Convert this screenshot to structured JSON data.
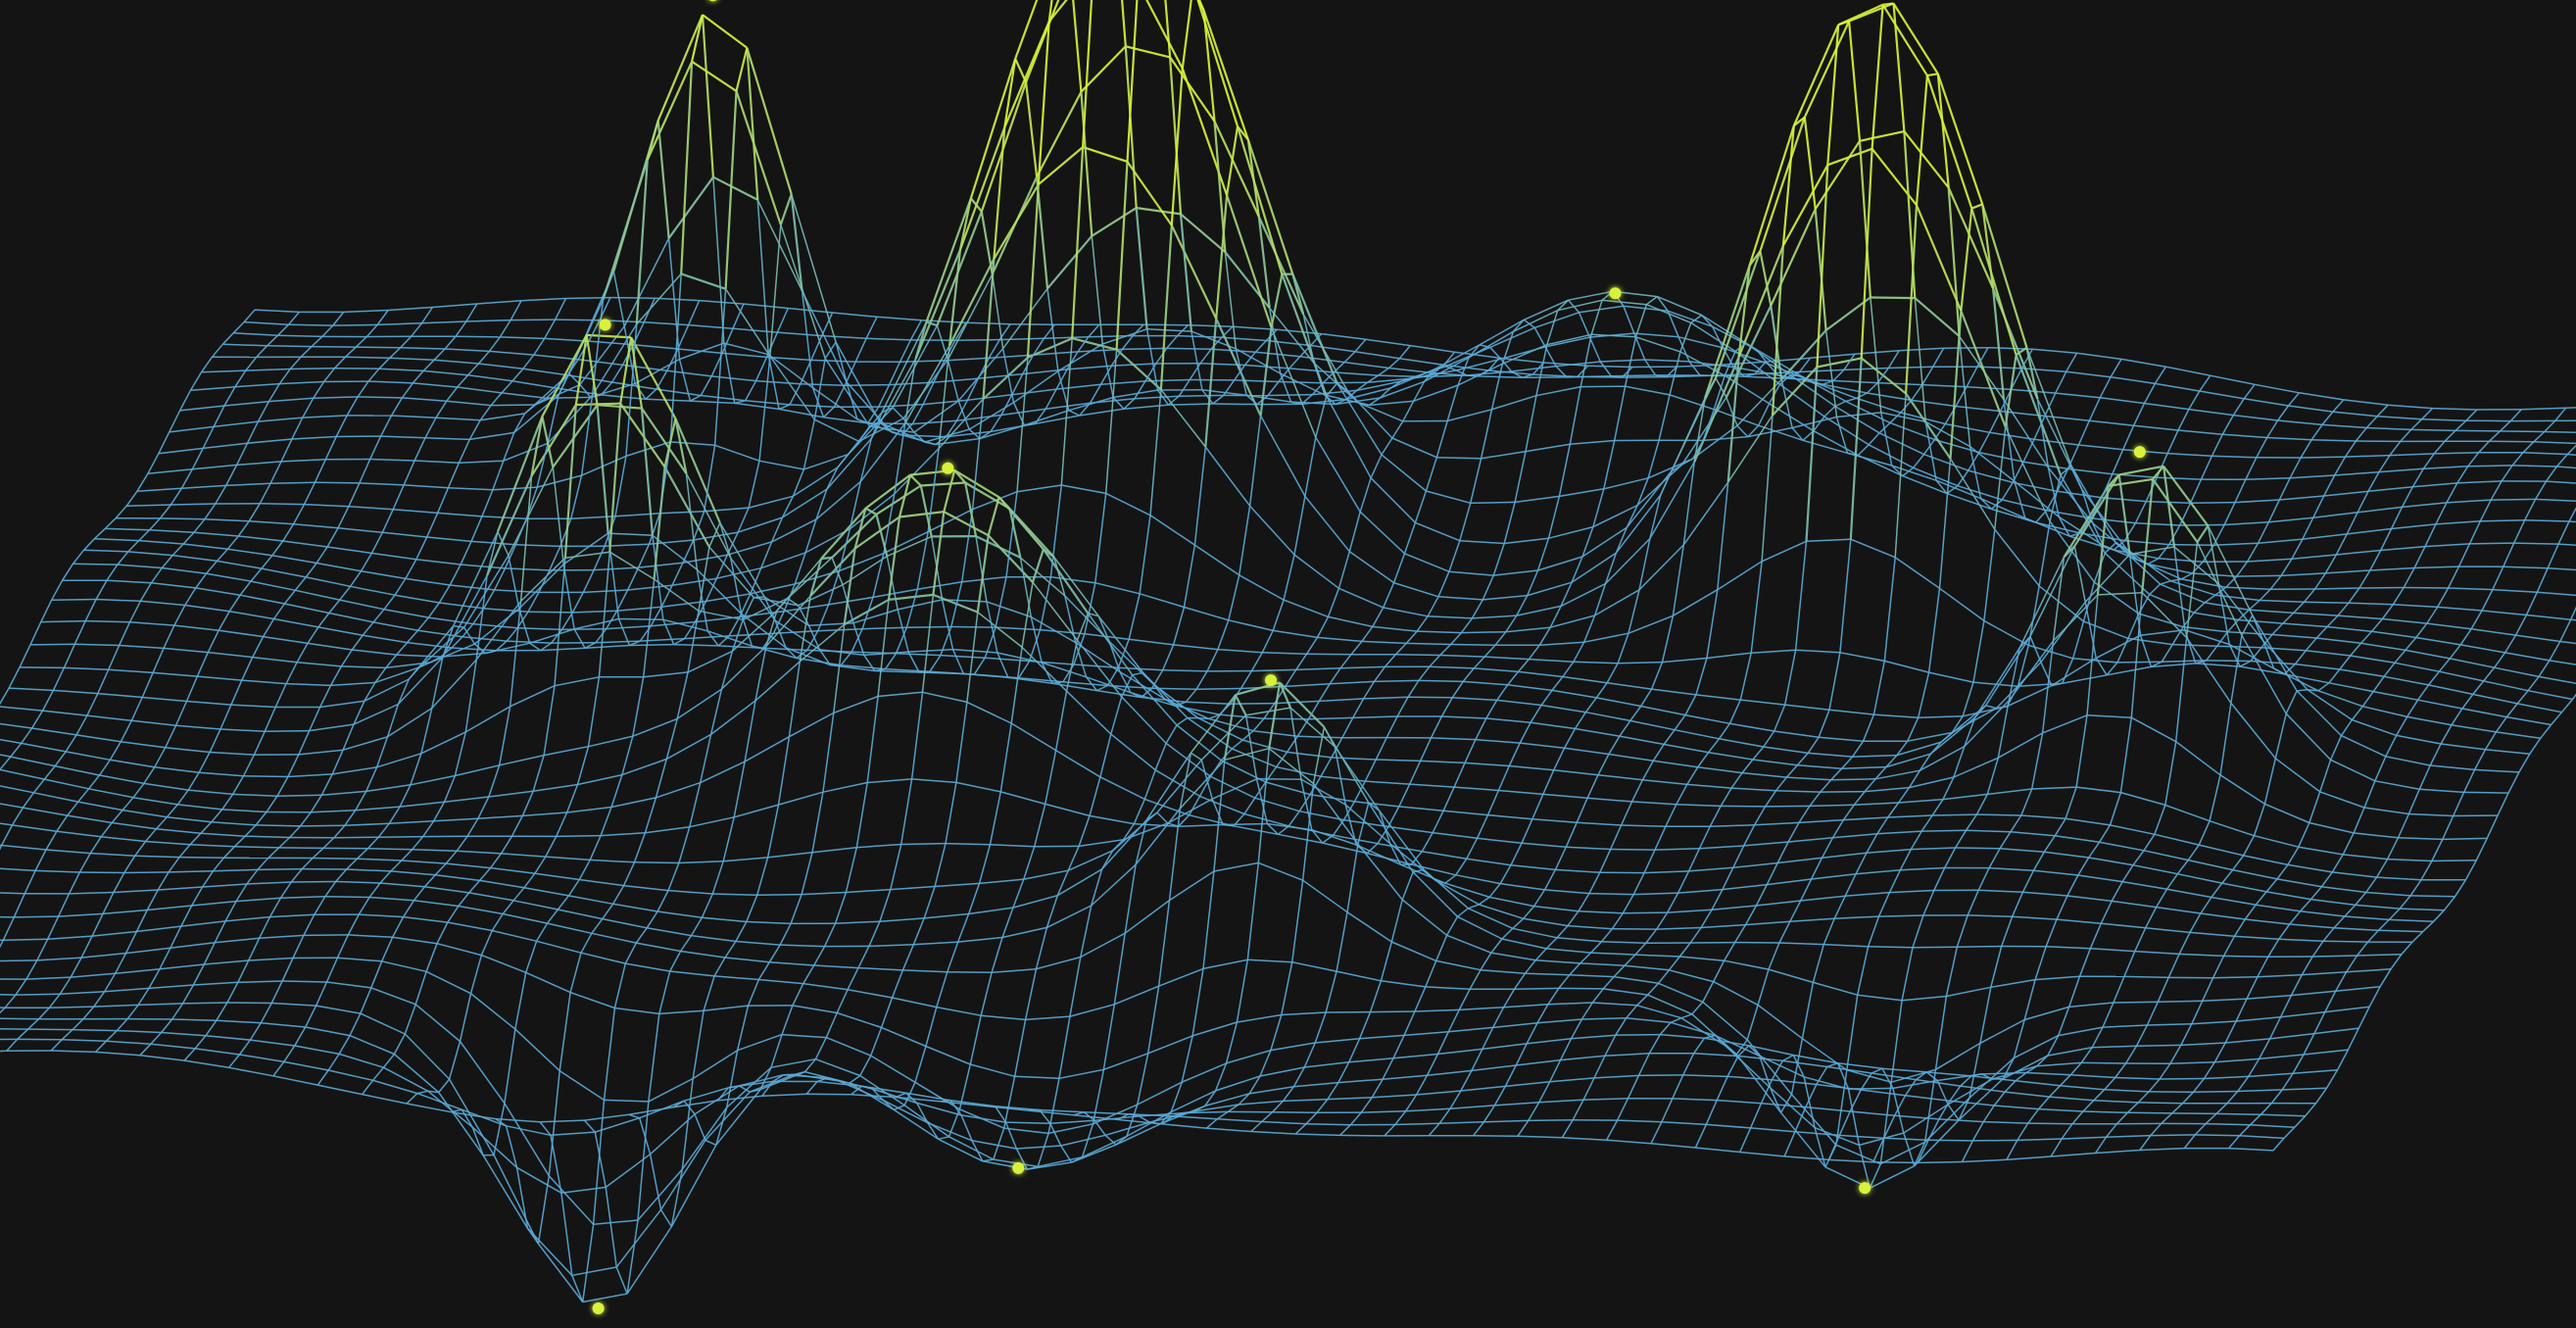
{
  "scene": {
    "subject": "wireframe-terrain-surface",
    "background_color": "#141414",
    "mesh_color": "#5aa9d6",
    "highlight_color": "#d8f23a",
    "grid_columns": 56,
    "grid_rows": 44,
    "peaks": [
      {
        "name": "tallest-peak-center-left",
        "u": -0.2,
        "v": 0.46,
        "height": 1.0,
        "spread": 0.1
      },
      {
        "name": "peak-right",
        "u": 0.42,
        "v": 0.38,
        "height": 0.92,
        "spread": 0.09
      },
      {
        "name": "spike-left",
        "u": -0.56,
        "v": 0.62,
        "height": 0.7,
        "spread": 0.06
      },
      {
        "name": "peak-far-right",
        "u": 0.7,
        "v": 0.02,
        "height": 0.46,
        "spread": 0.07
      },
      {
        "name": "peak-mid-left",
        "u": -0.52,
        "v": -0.05,
        "height": 0.55,
        "spread": 0.07
      },
      {
        "name": "ridge-center",
        "u": -0.22,
        "v": -0.18,
        "height": 0.48,
        "spread": 0.11
      },
      {
        "name": "peak-front-center",
        "u": 0.1,
        "v": -0.5,
        "height": 0.34,
        "spread": 0.07
      },
      {
        "name": "ridge-back-right",
        "u": 0.15,
        "v": 0.7,
        "height": 0.26,
        "spread": 0.12
      }
    ],
    "troughs": [
      {
        "name": "trough-bottom-left",
        "u": -0.38,
        "v": -0.82,
        "depth": 0.42,
        "spread": 0.07
      },
      {
        "name": "trough-bottom-right",
        "u": 0.6,
        "v": -0.62,
        "depth": 0.28,
        "spread": 0.07
      },
      {
        "name": "trough-center-front",
        "u": -0.05,
        "v": -0.78,
        "depth": 0.22,
        "spread": 0.1
      }
    ]
  }
}
